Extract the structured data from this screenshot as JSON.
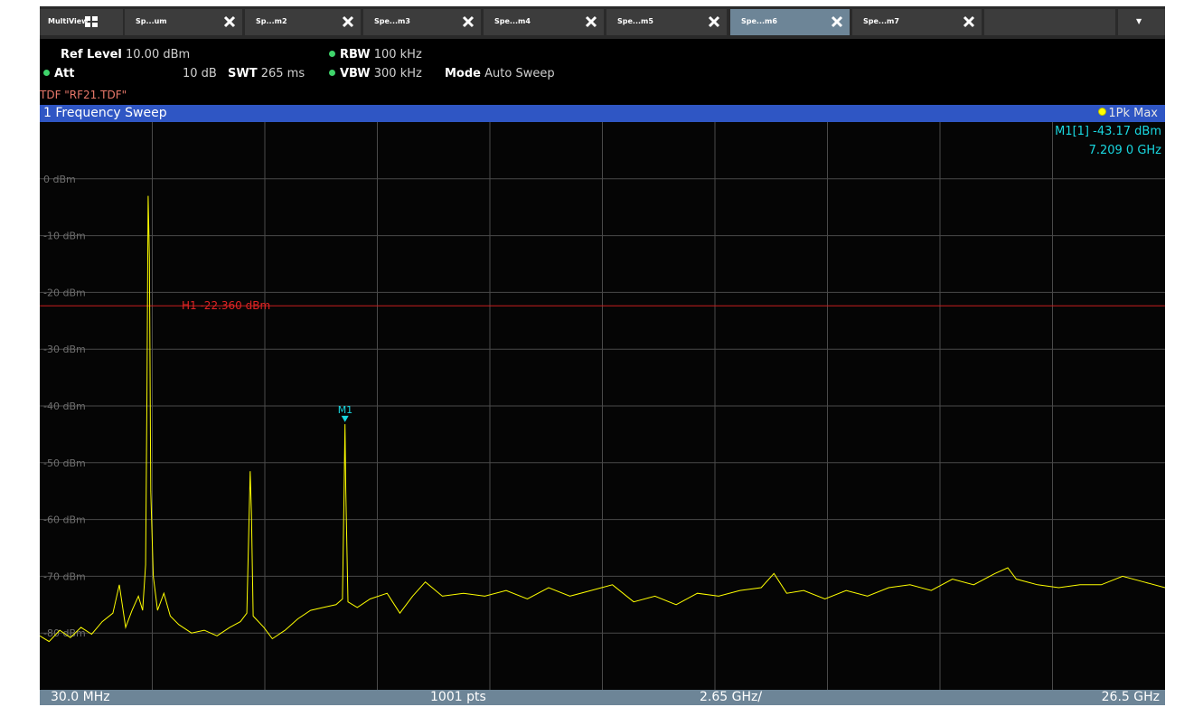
{
  "tabs": {
    "multiview": "MultiView",
    "items": [
      {
        "label": "Sp...um",
        "active": false
      },
      {
        "label": "Sp...m2",
        "active": false
      },
      {
        "label": "Spe...m3",
        "active": false
      },
      {
        "label": "Spe...m4",
        "active": false
      },
      {
        "label": "Spe...m5",
        "active": false
      },
      {
        "label": "Spe...m6",
        "active": true
      },
      {
        "label": "Spe...m7",
        "active": false
      }
    ],
    "dropdown_glyph": "▼"
  },
  "settings": {
    "ref_level_label": "Ref Level",
    "ref_level_value": "10.00 dBm",
    "att_label": "Att",
    "att_value": "10 dB",
    "swt_label": "SWT",
    "swt_value": "265 ms",
    "rbw_label": "RBW",
    "rbw_value": "100 kHz",
    "vbw_label": "VBW",
    "vbw_value": "300 kHz",
    "mode_label": "Mode",
    "mode_value": "Auto Sweep",
    "tdf": "TDF \"RF21.TDF\""
  },
  "window": {
    "title": "1 Frequency Sweep",
    "trace": "1Pk Max"
  },
  "marker": {
    "name": "M1",
    "readout_label": "M1[1]",
    "level": "-43.17 dBm",
    "frequency": "7.209 0 GHz"
  },
  "footer": {
    "start": "30.0 MHz",
    "points": "1001 pts",
    "span_per_div": "2.65 GHz/",
    "stop": "26.5 GHz"
  },
  "colors": {
    "trace": "#ffff00",
    "hline": "#c81e1e",
    "marker": "#19d7e0",
    "grid": "#4a4a4a"
  },
  "chart_data": {
    "type": "line",
    "x_unit": "GHz",
    "y_unit": "dBm",
    "xlim": [
      0.03,
      26.5
    ],
    "ylim": [
      -90,
      10
    ],
    "y_ticks": [
      {
        "value": 0,
        "label": "0 dBm"
      },
      {
        "value": -10,
        "label": "-10 dBm"
      },
      {
        "value": -20,
        "label": "-20 dBm"
      },
      {
        "value": -30,
        "label": "-30 dBm"
      },
      {
        "value": -40,
        "label": "-40 dBm"
      },
      {
        "value": -50,
        "label": "-50 dBm"
      },
      {
        "value": -60,
        "label": "-60 dBm"
      },
      {
        "value": -70,
        "label": "-70 dBm"
      },
      {
        "value": -80,
        "label": "-80 dBm"
      }
    ],
    "x_divisions": 10,
    "grid": true,
    "threshold_line": {
      "value": -22.36,
      "label": "H1 -22.360 dBm"
    },
    "marker": {
      "x": 7.209,
      "y": -43.17,
      "label": "M1"
    },
    "series": [
      {
        "points": [
          [
            0.03,
            -80.5
          ],
          [
            0.25,
            -81.5
          ],
          [
            0.5,
            -79.5
          ],
          [
            0.75,
            -80.8
          ],
          [
            1.0,
            -79.0
          ],
          [
            1.25,
            -80.2
          ],
          [
            1.5,
            -78.0
          ],
          [
            1.75,
            -76.5
          ],
          [
            1.9,
            -71.5
          ],
          [
            2.05,
            -79.0
          ],
          [
            2.2,
            -76.0
          ],
          [
            2.35,
            -73.5
          ],
          [
            2.45,
            -76.0
          ],
          [
            2.52,
            -68.0
          ],
          [
            2.55,
            -40.0
          ],
          [
            2.58,
            -3.0
          ],
          [
            2.61,
            -14.0
          ],
          [
            2.64,
            -55.0
          ],
          [
            2.7,
            -70.0
          ],
          [
            2.8,
            -76.0
          ],
          [
            2.95,
            -73.0
          ],
          [
            3.1,
            -77.0
          ],
          [
            3.3,
            -78.5
          ],
          [
            3.6,
            -80.0
          ],
          [
            3.9,
            -79.5
          ],
          [
            4.2,
            -80.5
          ],
          [
            4.5,
            -79.0
          ],
          [
            4.75,
            -78.0
          ],
          [
            4.9,
            -76.5
          ],
          [
            4.95,
            -61.0
          ],
          [
            4.98,
            -51.5
          ],
          [
            5.01,
            -59.0
          ],
          [
            5.05,
            -77.0
          ],
          [
            5.3,
            -79.0
          ],
          [
            5.5,
            -81.0
          ],
          [
            5.8,
            -79.5
          ],
          [
            6.1,
            -77.5
          ],
          [
            6.4,
            -76.0
          ],
          [
            6.7,
            -75.5
          ],
          [
            7.0,
            -75.0
          ],
          [
            7.15,
            -74.0
          ],
          [
            7.19,
            -54.0
          ],
          [
            7.21,
            -43.2
          ],
          [
            7.23,
            -55.0
          ],
          [
            7.28,
            -74.5
          ],
          [
            7.5,
            -75.5
          ],
          [
            7.8,
            -74.0
          ],
          [
            8.2,
            -73.0
          ],
          [
            8.5,
            -76.5
          ],
          [
            8.8,
            -73.5
          ],
          [
            9.1,
            -71.0
          ],
          [
            9.5,
            -73.5
          ],
          [
            10.0,
            -73.0
          ],
          [
            10.5,
            -73.5
          ],
          [
            11.0,
            -72.5
          ],
          [
            11.5,
            -74.0
          ],
          [
            12.0,
            -72.0
          ],
          [
            12.5,
            -73.5
          ],
          [
            13.0,
            -72.5
          ],
          [
            13.5,
            -71.5
          ],
          [
            14.0,
            -74.5
          ],
          [
            14.5,
            -73.5
          ],
          [
            15.0,
            -75.0
          ],
          [
            15.5,
            -73.0
          ],
          [
            16.0,
            -73.5
          ],
          [
            16.5,
            -72.5
          ],
          [
            17.0,
            -72.0
          ],
          [
            17.3,
            -69.5
          ],
          [
            17.6,
            -73.0
          ],
          [
            18.0,
            -72.5
          ],
          [
            18.5,
            -74.0
          ],
          [
            19.0,
            -72.5
          ],
          [
            19.5,
            -73.5
          ],
          [
            20.0,
            -72.0
          ],
          [
            20.5,
            -71.5
          ],
          [
            21.0,
            -72.5
          ],
          [
            21.5,
            -70.5
          ],
          [
            22.0,
            -71.5
          ],
          [
            22.5,
            -69.5
          ],
          [
            22.8,
            -68.5
          ],
          [
            23.0,
            -70.5
          ],
          [
            23.5,
            -71.5
          ],
          [
            24.0,
            -72.0
          ],
          [
            24.5,
            -71.5
          ],
          [
            25.0,
            -71.5
          ],
          [
            25.5,
            -70.0
          ],
          [
            26.0,
            -71.0
          ],
          [
            26.5,
            -72.0
          ]
        ]
      }
    ]
  }
}
